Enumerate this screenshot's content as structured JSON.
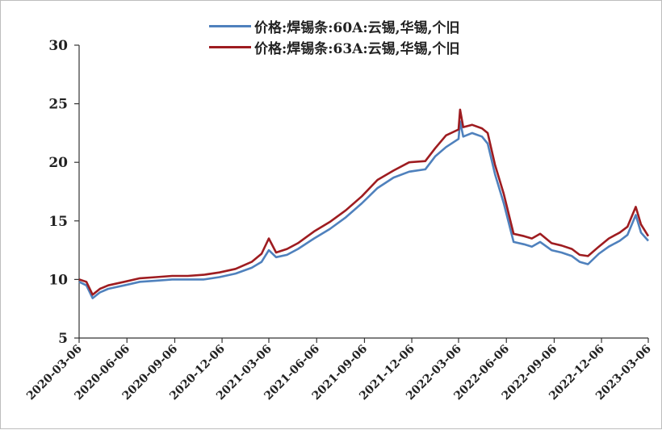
{
  "chart_data": {
    "type": "line",
    "title": "",
    "xlabel": "",
    "ylabel": "",
    "ylim": [
      5,
      30
    ],
    "yticks": [
      5,
      10,
      15,
      20,
      25,
      30
    ],
    "x_tick_labels": [
      "2020-03-06",
      "2020-06-06",
      "2020-09-06",
      "2020-12-06",
      "2021-03-06",
      "2021-06-06",
      "2021-09-06",
      "2021-12-06",
      "2022-03-06",
      "2022-06-06",
      "2022-09-06",
      "2022-12-06",
      "2023-03-06"
    ],
    "xlim": [
      "2020-03-06",
      "2023-03-06"
    ],
    "grid": false,
    "legend_position": "top-center",
    "x": [
      "2020-03-06",
      "2020-03-20",
      "2020-04-01",
      "2020-04-15",
      "2020-05-01",
      "2020-06-01",
      "2020-07-01",
      "2020-08-01",
      "2020-09-01",
      "2020-10-01",
      "2020-11-01",
      "2020-12-01",
      "2021-01-01",
      "2021-02-01",
      "2021-02-20",
      "2021-03-06",
      "2021-03-20",
      "2021-04-10",
      "2021-05-01",
      "2021-06-01",
      "2021-07-01",
      "2021-08-01",
      "2021-09-01",
      "2021-10-01",
      "2021-11-01",
      "2021-12-01",
      "2022-01-01",
      "2022-01-20",
      "2022-02-10",
      "2022-03-06",
      "2022-03-09",
      "2022-03-15",
      "2022-04-01",
      "2022-04-20",
      "2022-05-01",
      "2022-05-15",
      "2022-06-01",
      "2022-06-20",
      "2022-07-10",
      "2022-07-25",
      "2022-08-10",
      "2022-09-01",
      "2022-09-20",
      "2022-10-10",
      "2022-10-25",
      "2022-11-10",
      "2022-12-01",
      "2022-12-20",
      "2023-01-10",
      "2023-01-25",
      "2023-02-10",
      "2023-02-20",
      "2023-03-06"
    ],
    "series": [
      {
        "name": "价格:焊锡条:60A:云锡,华锡,个旧",
        "color": "#4f81bd",
        "values": [
          9.8,
          9.5,
          8.4,
          8.9,
          9.2,
          9.5,
          9.8,
          9.9,
          10.0,
          10.0,
          10.0,
          10.2,
          10.5,
          11.0,
          11.5,
          12.5,
          11.9,
          12.1,
          12.6,
          13.5,
          14.3,
          15.3,
          16.5,
          17.8,
          18.7,
          19.2,
          19.4,
          20.5,
          21.3,
          22.0,
          23.5,
          22.2,
          22.5,
          22.2,
          21.6,
          19.0,
          16.5,
          13.2,
          13.0,
          12.8,
          13.2,
          12.5,
          12.3,
          12.0,
          11.5,
          11.3,
          12.2,
          12.8,
          13.3,
          13.8,
          15.5,
          14.0,
          13.3
        ]
      },
      {
        "name": "价格:焊锡条:63A:云锡,华锡,个旧",
        "color": "#9e1c20",
        "values": [
          10.0,
          9.8,
          8.7,
          9.2,
          9.5,
          9.8,
          10.1,
          10.2,
          10.3,
          10.3,
          10.4,
          10.6,
          10.9,
          11.5,
          12.2,
          13.5,
          12.3,
          12.6,
          13.1,
          14.1,
          14.9,
          15.9,
          17.1,
          18.5,
          19.3,
          20.0,
          20.1,
          21.2,
          22.3,
          22.8,
          24.5,
          23.0,
          23.2,
          22.9,
          22.5,
          19.8,
          17.3,
          13.9,
          13.7,
          13.5,
          13.9,
          13.1,
          12.9,
          12.6,
          12.1,
          12.0,
          12.8,
          13.5,
          14.0,
          14.5,
          16.2,
          14.7,
          13.7
        ]
      }
    ]
  }
}
